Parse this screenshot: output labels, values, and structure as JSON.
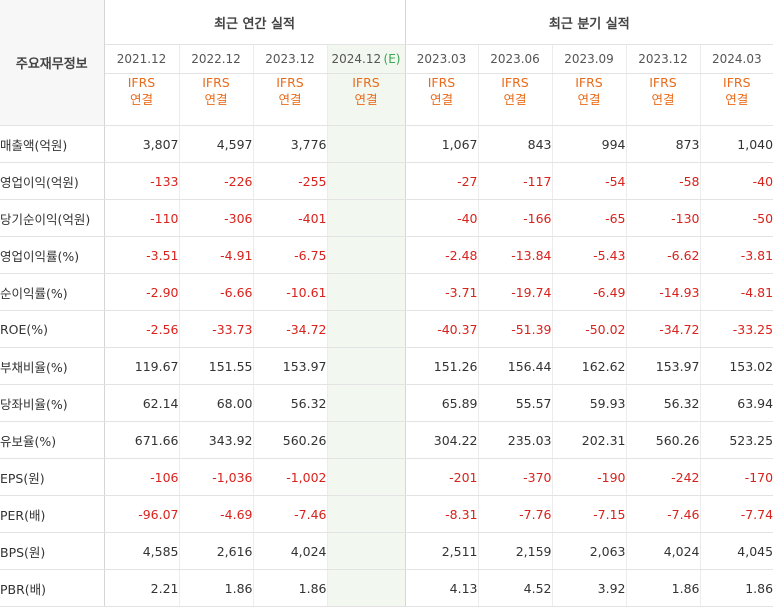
{
  "header": {
    "corner_label": "주요재무정보",
    "annual_group": "최근 연간 실적",
    "quarterly_group": "최근 분기 실적",
    "ifrs_top": "IFRS",
    "ifrs_bottom": "연결",
    "annual_dates": [
      "2021.12",
      "2022.12",
      "2023.12",
      "2024.12"
    ],
    "estimate_tag": "(E)",
    "quarterly_dates": [
      "2023.03",
      "2023.06",
      "2023.09",
      "2023.12",
      "2024.03"
    ]
  },
  "rows": [
    {
      "label": "매출액(억원)",
      "annual": [
        "3,807",
        "4,597",
        "3,776",
        ""
      ],
      "quarterly": [
        "1,067",
        "843",
        "994",
        "873",
        "1,040"
      ]
    },
    {
      "label": "영업이익(억원)",
      "annual": [
        "-133",
        "-226",
        "-255",
        ""
      ],
      "quarterly": [
        "-27",
        "-117",
        "-54",
        "-58",
        "-40"
      ]
    },
    {
      "label": "당기순이익(억원)",
      "annual": [
        "-110",
        "-306",
        "-401",
        ""
      ],
      "quarterly": [
        "-40",
        "-166",
        "-65",
        "-130",
        "-50"
      ]
    },
    {
      "label": "영업이익률(%)",
      "annual": [
        "-3.51",
        "-4.91",
        "-6.75",
        ""
      ],
      "quarterly": [
        "-2.48",
        "-13.84",
        "-5.43",
        "-6.62",
        "-3.81"
      ]
    },
    {
      "label": "순이익률(%)",
      "annual": [
        "-2.90",
        "-6.66",
        "-10.61",
        ""
      ],
      "quarterly": [
        "-3.71",
        "-19.74",
        "-6.49",
        "-14.93",
        "-4.81"
      ]
    },
    {
      "label": "ROE(%)",
      "annual": [
        "-2.56",
        "-33.73",
        "-34.72",
        ""
      ],
      "quarterly": [
        "-40.37",
        "-51.39",
        "-50.02",
        "-34.72",
        "-33.25"
      ]
    },
    {
      "label": "부채비율(%)",
      "annual": [
        "119.67",
        "151.55",
        "153.97",
        ""
      ],
      "quarterly": [
        "151.26",
        "156.44",
        "162.62",
        "153.97",
        "153.02"
      ]
    },
    {
      "label": "당좌비율(%)",
      "annual": [
        "62.14",
        "68.00",
        "56.32",
        ""
      ],
      "quarterly": [
        "65.89",
        "55.57",
        "59.93",
        "56.32",
        "63.94"
      ]
    },
    {
      "label": "유보율(%)",
      "annual": [
        "671.66",
        "343.92",
        "560.26",
        ""
      ],
      "quarterly": [
        "304.22",
        "235.03",
        "202.31",
        "560.26",
        "523.25"
      ]
    },
    {
      "label": "EPS(원)",
      "annual": [
        "-106",
        "-1,036",
        "-1,002",
        ""
      ],
      "quarterly": [
        "-201",
        "-370",
        "-190",
        "-242",
        "-170"
      ]
    },
    {
      "label": "PER(배)",
      "annual": [
        "-96.07",
        "-4.69",
        "-7.46",
        ""
      ],
      "quarterly": [
        "-8.31",
        "-7.76",
        "-7.15",
        "-7.46",
        "-7.74"
      ]
    },
    {
      "label": "BPS(원)",
      "annual": [
        "4,585",
        "2,616",
        "4,024",
        ""
      ],
      "quarterly": [
        "2,511",
        "2,159",
        "2,063",
        "4,024",
        "4,045"
      ]
    },
    {
      "label": "PBR(배)",
      "annual": [
        "2.21",
        "1.86",
        "1.86",
        ""
      ],
      "quarterly": [
        "4.13",
        "4.52",
        "3.92",
        "1.86",
        "1.86"
      ]
    }
  ],
  "colors": {
    "negative": "#d9221c",
    "ifrs": "#e86b1b",
    "estimate_bg": "#f2f8ef",
    "estimate_tag": "#3aa651"
  }
}
